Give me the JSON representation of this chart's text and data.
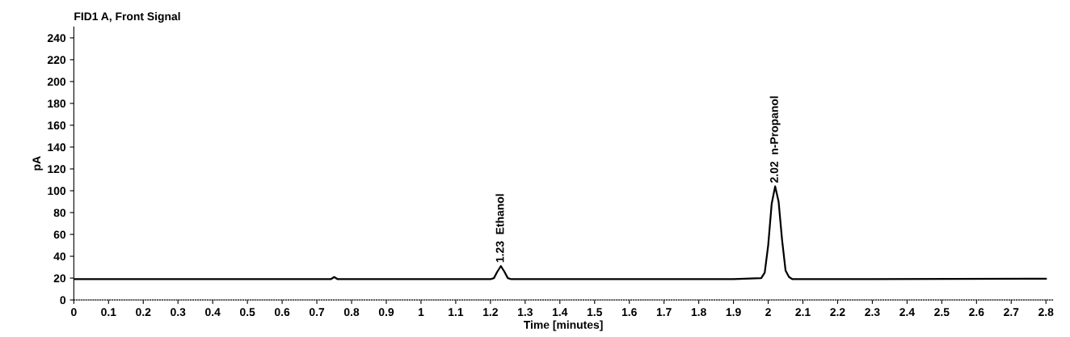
{
  "chart_data": {
    "type": "line",
    "title": "FID1 A, Front Signal",
    "xlabel": "Time [minutes]",
    "ylabel": "pA",
    "series": [
      {
        "color": "#000000",
        "x": [
          0,
          0.5,
          0.74,
          0.75,
          0.76,
          1.0,
          1.2,
          1.21,
          1.22,
          1.23,
          1.24,
          1.25,
          1.26,
          1.5,
          1.9,
          1.98,
          1.99,
          2.0,
          2.01,
          2.02,
          2.03,
          2.04,
          2.05,
          2.06,
          2.07,
          2.3,
          2.8
        ],
        "values": [
          19,
          19,
          19,
          21,
          19,
          19,
          19,
          20,
          26,
          31,
          26,
          20,
          19,
          19,
          19,
          20,
          25,
          50,
          88,
          104,
          90,
          55,
          27,
          21,
          19,
          19,
          19.5
        ]
      }
    ],
    "annotations": [
      {
        "text": "1.23  Ethanol",
        "x": 1.23,
        "y": 31
      },
      {
        "text": "2.02  n-Propanol",
        "x": 2.02,
        "y": 104
      }
    ],
    "xlim": [
      0,
      2.82
    ],
    "ylim": [
      0,
      250
    ],
    "xticks": [
      0,
      0.1,
      0.2,
      0.3,
      0.4,
      0.5,
      0.6,
      0.7,
      0.8,
      0.9,
      1,
      1.1,
      1.2,
      1.3,
      1.4,
      1.5,
      1.6,
      1.7,
      1.8,
      1.9,
      2,
      2.1,
      2.2,
      2.3,
      2.4,
      2.5,
      2.6,
      2.7,
      2.8
    ],
    "yticks": [
      0,
      20,
      40,
      60,
      80,
      100,
      120,
      140,
      160,
      180,
      200,
      220,
      240
    ],
    "grid": false,
    "legend": false,
    "marker": "none",
    "line_style": "solid"
  }
}
